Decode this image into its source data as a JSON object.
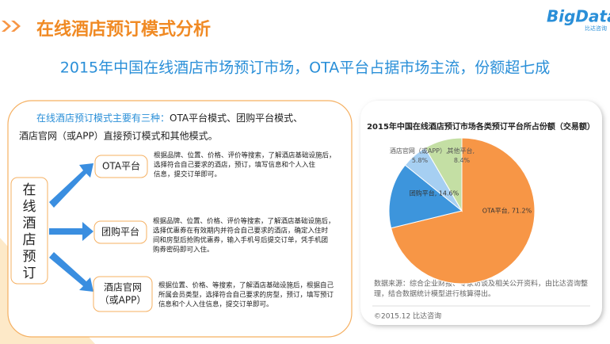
{
  "header": {
    "title": "在线酒店预订模式分析",
    "logo": "BigData",
    "logo_sub": "比达咨询",
    "subtitle": "2015年中国在线酒店市场预订市场，OTA平台占据市场主流，份额超七成"
  },
  "intro": {
    "lead": "在线酒店预订模式主要有三种：",
    "rest": "OTA平台模式、团购平台模式、",
    "line2": "酒店官网（或APP）直接预订模式和其他模式。"
  },
  "diagram": {
    "root": [
      "在",
      "线",
      "酒",
      "店",
      "预",
      "订"
    ],
    "modes": [
      {
        "label": [
          "OTA平台"
        ],
        "desc": [
          "根据品牌、位置、价格、评价等搜索，了解酒店基础设施后，",
          "选择符合自己要求的酒店，预订，填写信息和个人入住",
          "信息，提交订单即可。"
        ]
      },
      {
        "label": [
          "团购平台"
        ],
        "desc": [
          "根据品牌、位置、价格、评价等搜索，了解酒店基础设施后，",
          "选择优惠券在有效期内并符合自己要求的酒店，确定入住时",
          "间和房型后抢购优惠券，输入手机号后提交订单，凭手机团",
          "购券密码即可入住。"
        ]
      },
      {
        "label": [
          "酒店官网",
          "（或APP）"
        ],
        "desc": [
          "根据位置、价格、等搜索，了解酒店基础设施后，根据自己",
          "所属会员类型，选择符合自己要求的房型，预订，填写预订",
          "信息和个人入住信息，提交订单即可。"
        ]
      }
    ]
  },
  "chart_data": {
    "type": "pie",
    "title": "2015年中国在线酒店预订市场各类预订平台所占份额（交易额）",
    "values": [
      71.2,
      14.6,
      5.8,
      8.4
    ],
    "value_labels": [
      "OTA平台, 71.2%",
      "团购平台, 14.6%",
      "酒店官网（或APP）, 5.8%",
      "其他平台, 8.4%"
    ],
    "colors": [
      "#f79646",
      "#3d95dc",
      "#a6cff2",
      "#c4dfa4"
    ]
  },
  "source": [
    "数据来源：综合企业财报、专家访谈及相关公开资料，由比达咨询整",
    "理，结合数据统计模型进行核算得出。"
  ],
  "copyright": "©2015.12  比达咨询"
}
